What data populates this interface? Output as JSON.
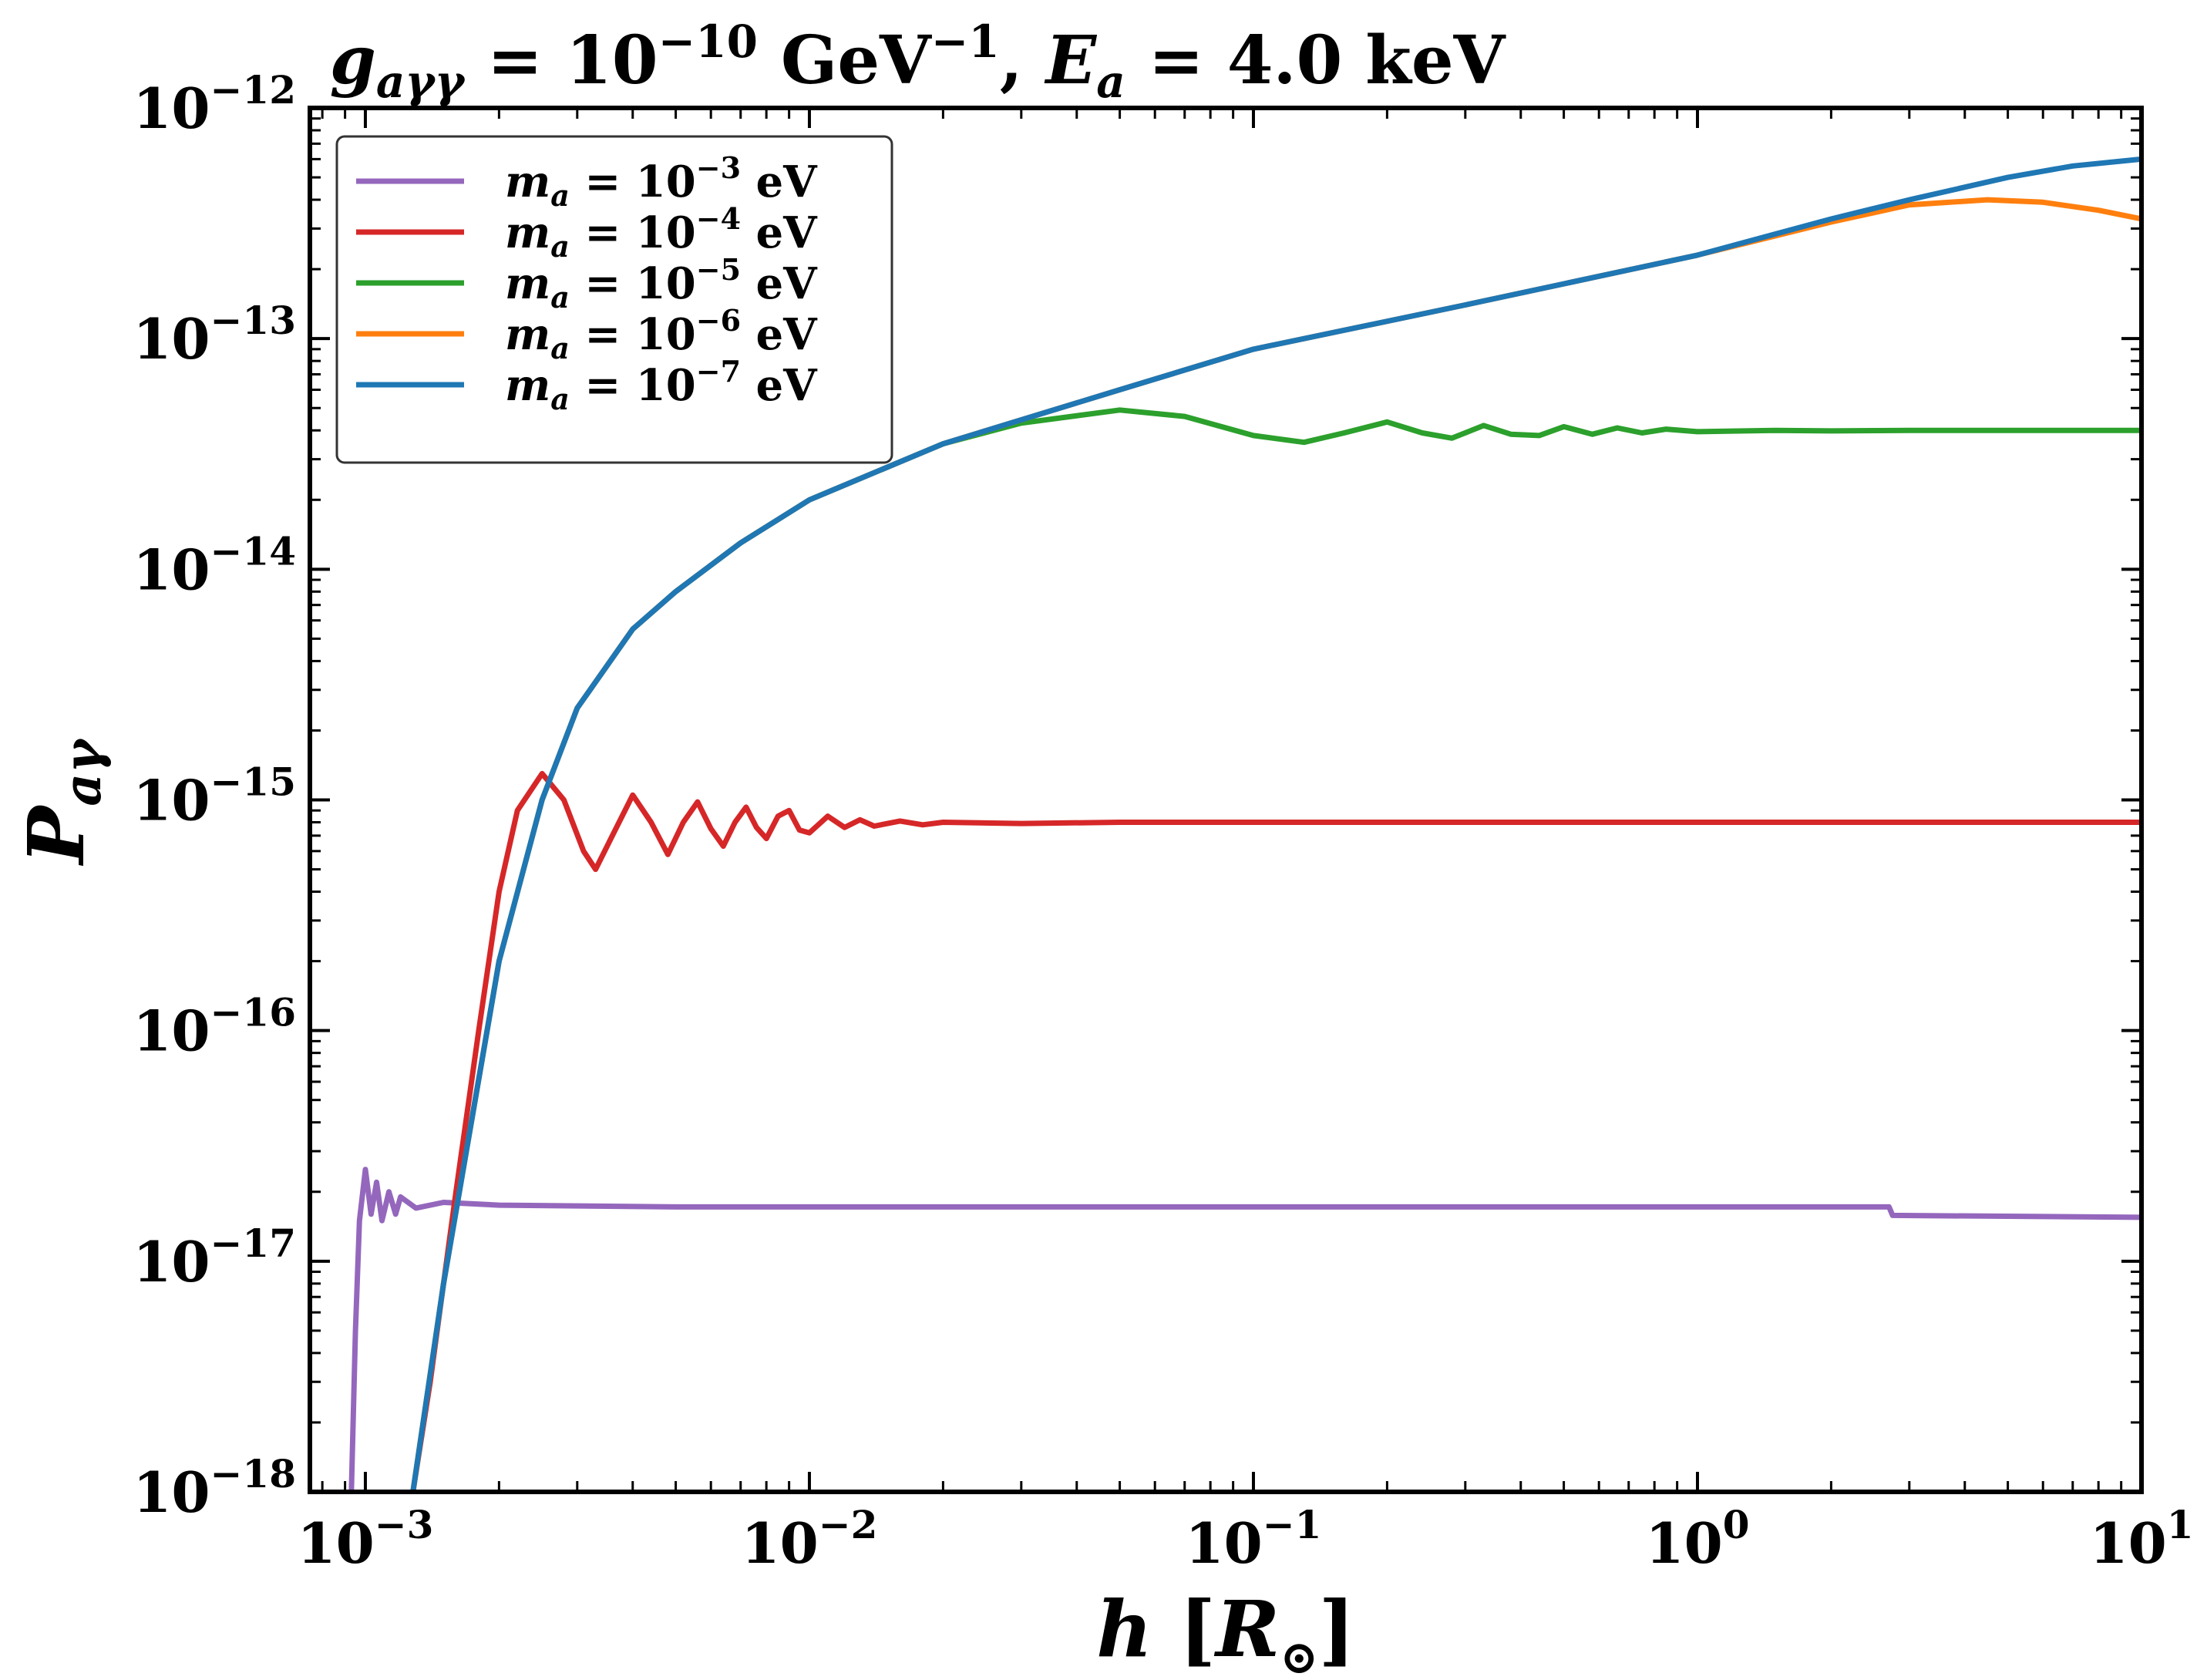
{
  "chart_data": {
    "type": "line",
    "title_parts": [
      "g",
      "aγγ",
      " = 10",
      "−10",
      " GeV",
      "−1",
      ", ",
      "E",
      "a",
      " = 4.0 keV"
    ],
    "xlabel_parts": [
      "h",
      " [",
      "R",
      "⊙",
      "]"
    ],
    "ylabel_parts": [
      "P",
      "aγ"
    ],
    "x_scale": "log",
    "y_scale": "log",
    "xlim": [
      0.00075,
      10
    ],
    "ylim": [
      1e-18,
      1e-12
    ],
    "x_ticks": [
      {
        "value": 0.001,
        "base": "10",
        "exp": "−3"
      },
      {
        "value": 0.01,
        "base": "10",
        "exp": "−2"
      },
      {
        "value": 0.1,
        "base": "10",
        "exp": "−1"
      },
      {
        "value": 1,
        "base": "10",
        "exp": "0"
      },
      {
        "value": 10,
        "base": "10",
        "exp": "1"
      }
    ],
    "y_ticks": [
      {
        "value": 1e-18,
        "base": "10",
        "exp": "−18"
      },
      {
        "value": 1e-17,
        "base": "10",
        "exp": "−17"
      },
      {
        "value": 1e-16,
        "base": "10",
        "exp": "−16"
      },
      {
        "value": 1e-15,
        "base": "10",
        "exp": "−15"
      },
      {
        "value": 1e-14,
        "base": "10",
        "exp": "−14"
      },
      {
        "value": 1e-13,
        "base": "10",
        "exp": "−13"
      },
      {
        "value": 1e-12,
        "base": "10",
        "exp": "−12"
      }
    ],
    "legend_position": "upper-left",
    "series": [
      {
        "name_parts": [
          "m",
          "a",
          " = 10",
          "−3",
          " eV"
        ],
        "color": "#9467bd",
        "points": [
          [
            0.00093,
            1e-18
          ],
          [
            0.00095,
            5e-18
          ],
          [
            0.00097,
            1.5e-17
          ],
          [
            0.001,
            2.5e-17
          ],
          [
            0.00103,
            1.6e-17
          ],
          [
            0.00106,
            2.2e-17
          ],
          [
            0.00109,
            1.5e-17
          ],
          [
            0.00113,
            2e-17
          ],
          [
            0.00117,
            1.6e-17
          ],
          [
            0.0012,
            1.9e-17
          ],
          [
            0.0013,
            1.7e-17
          ],
          [
            0.0015,
            1.8e-17
          ],
          [
            0.002,
            1.75e-17
          ],
          [
            0.005,
            1.72e-17
          ],
          [
            0.01,
            1.72e-17
          ],
          [
            0.1,
            1.72e-17
          ],
          [
            1,
            1.72e-17
          ],
          [
            2.7,
            1.72e-17
          ],
          [
            2.75,
            1.58e-17
          ],
          [
            10,
            1.55e-17
          ]
        ]
      },
      {
        "name_parts": [
          "m",
          "a",
          " = 10",
          "−4",
          " eV"
        ],
        "color": "#d62728",
        "points": [
          [
            0.00128,
            1e-18
          ],
          [
            0.0014,
            3e-18
          ],
          [
            0.0016,
            2e-17
          ],
          [
            0.0018,
            1e-16
          ],
          [
            0.002,
            4e-16
          ],
          [
            0.0022,
            9e-16
          ],
          [
            0.0025,
            1.3e-15
          ],
          [
            0.0028,
            1e-15
          ],
          [
            0.0031,
            6e-16
          ],
          [
            0.0033,
            5e-16
          ],
          [
            0.0036,
            7e-16
          ],
          [
            0.004,
            1.05e-15
          ],
          [
            0.0044,
            8e-16
          ],
          [
            0.0048,
            5.8e-16
          ],
          [
            0.0052,
            8e-16
          ],
          [
            0.0056,
            9.8e-16
          ],
          [
            0.006,
            7.5e-16
          ],
          [
            0.0064,
            6.3e-16
          ],
          [
            0.0068,
            8e-16
          ],
          [
            0.0072,
            9.3e-16
          ],
          [
            0.0076,
            7.6e-16
          ],
          [
            0.008,
            6.8e-16
          ],
          [
            0.0085,
            8.5e-16
          ],
          [
            0.009,
            9e-16
          ],
          [
            0.0095,
            7.4e-16
          ],
          [
            0.01,
            7.2e-16
          ],
          [
            0.011,
            8.5e-16
          ],
          [
            0.012,
            7.6e-16
          ],
          [
            0.013,
            8.2e-16
          ],
          [
            0.014,
            7.7e-16
          ],
          [
            0.016,
            8.1e-16
          ],
          [
            0.018,
            7.8e-16
          ],
          [
            0.02,
            8e-16
          ],
          [
            0.03,
            7.9e-16
          ],
          [
            0.05,
            8e-16
          ],
          [
            0.1,
            8e-16
          ],
          [
            1,
            8e-16
          ],
          [
            10,
            8e-16
          ]
        ]
      },
      {
        "name_parts": [
          "m",
          "a",
          " = 10",
          "−5",
          " eV"
        ],
        "color": "#2ca02c",
        "points": [
          [
            0.00128,
            1e-18
          ],
          [
            0.0015,
            8e-18
          ],
          [
            0.002,
            2e-16
          ],
          [
            0.0025,
            1e-15
          ],
          [
            0.003,
            2.5e-15
          ],
          [
            0.004,
            5.5e-15
          ],
          [
            0.005,
            8e-15
          ],
          [
            0.007,
            1.3e-14
          ],
          [
            0.01,
            2e-14
          ],
          [
            0.02,
            3.5e-14
          ],
          [
            0.03,
            4.3e-14
          ],
          [
            0.05,
            4.9e-14
          ],
          [
            0.07,
            4.6e-14
          ],
          [
            0.1,
            3.8e-14
          ],
          [
            0.13,
            3.55e-14
          ],
          [
            0.16,
            3.9e-14
          ],
          [
            0.2,
            4.35e-14
          ],
          [
            0.24,
            3.9e-14
          ],
          [
            0.28,
            3.7e-14
          ],
          [
            0.33,
            4.2e-14
          ],
          [
            0.38,
            3.85e-14
          ],
          [
            0.44,
            3.8e-14
          ],
          [
            0.5,
            4.15e-14
          ],
          [
            0.58,
            3.85e-14
          ],
          [
            0.66,
            4.1e-14
          ],
          [
            0.75,
            3.9e-14
          ],
          [
            0.85,
            4.05e-14
          ],
          [
            1,
            3.95e-14
          ],
          [
            1.5,
            4e-14
          ],
          [
            2,
            3.98e-14
          ],
          [
            3,
            4e-14
          ],
          [
            10,
            4e-14
          ]
        ]
      },
      {
        "name_parts": [
          "m",
          "a",
          " = 10",
          "−6",
          " eV"
        ],
        "color": "#ff7f0e",
        "points": [
          [
            0.00128,
            1e-18
          ],
          [
            0.0015,
            8e-18
          ],
          [
            0.002,
            2e-16
          ],
          [
            0.0025,
            1e-15
          ],
          [
            0.003,
            2.5e-15
          ],
          [
            0.004,
            5.5e-15
          ],
          [
            0.005,
            8e-15
          ],
          [
            0.007,
            1.3e-14
          ],
          [
            0.01,
            2e-14
          ],
          [
            0.02,
            3.5e-14
          ],
          [
            0.05,
            6e-14
          ],
          [
            0.1,
            9e-14
          ],
          [
            0.3,
            1.4e-13
          ],
          [
            1,
            2.3e-13
          ],
          [
            2,
            3.2e-13
          ],
          [
            3,
            3.8e-13
          ],
          [
            4.5,
            4e-13
          ],
          [
            6,
            3.9e-13
          ],
          [
            8,
            3.6e-13
          ],
          [
            10,
            3.3e-13
          ]
        ]
      },
      {
        "name_parts": [
          "m",
          "a",
          " = 10",
          "−7",
          " eV"
        ],
        "color": "#1f77b4",
        "points": [
          [
            0.00128,
            1e-18
          ],
          [
            0.0015,
            8e-18
          ],
          [
            0.002,
            2e-16
          ],
          [
            0.0025,
            1e-15
          ],
          [
            0.003,
            2.5e-15
          ],
          [
            0.004,
            5.5e-15
          ],
          [
            0.005,
            8e-15
          ],
          [
            0.007,
            1.3e-14
          ],
          [
            0.01,
            2e-14
          ],
          [
            0.02,
            3.5e-14
          ],
          [
            0.05,
            6e-14
          ],
          [
            0.1,
            9e-14
          ],
          [
            0.3,
            1.4e-13
          ],
          [
            1,
            2.3e-13
          ],
          [
            2,
            3.3e-13
          ],
          [
            3,
            4e-13
          ],
          [
            5,
            5e-13
          ],
          [
            7,
            5.6e-13
          ],
          [
            10,
            6e-13
          ]
        ]
      }
    ]
  }
}
